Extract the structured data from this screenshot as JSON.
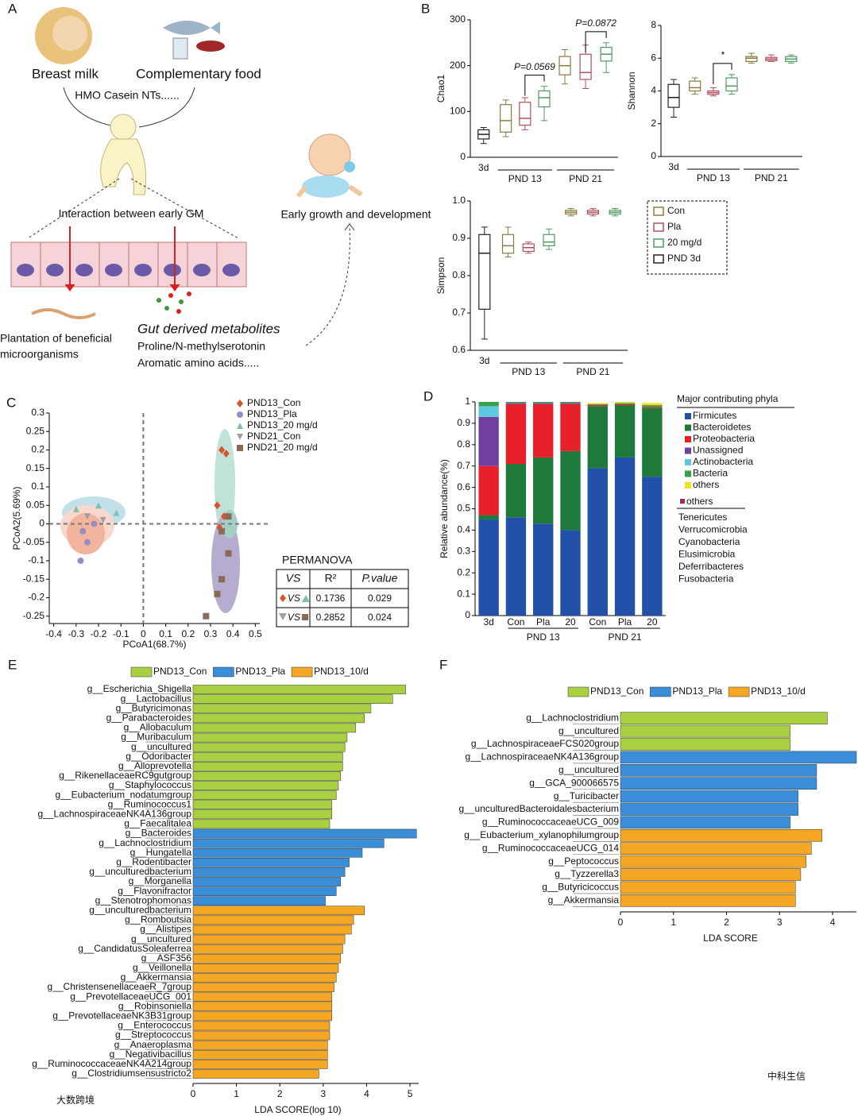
{
  "panel_labels": [
    "A",
    "B",
    "C",
    "D",
    "E",
    "F"
  ],
  "diagram": {
    "sources": [
      "Breast milk",
      "Complementary food"
    ],
    "nutrients": "HMO Casein NTs......",
    "interaction": "Interaction between early GM",
    "outcome": "Early growth and development",
    "plantation": [
      "Plantation of beneficial",
      "microorganisms"
    ],
    "metabolites": {
      "title": "Gut derived metabolites",
      "items": [
        "Proline/N-methylserotonin",
        "Aromatic amino acids....."
      ]
    }
  },
  "chart_data": [
    {
      "type": "box",
      "ylabel": "Chao1",
      "categories": [
        "3d",
        null,
        null,
        null,
        null,
        null,
        null
      ],
      "category_groups": [
        {
          "label": "PND 13",
          "members": [
            1,
            2,
            3
          ]
        },
        {
          "label": "PND 21",
          "members": [
            4,
            5,
            6
          ]
        }
      ],
      "colors": [
        "#222222",
        "#8c7b3e",
        "#b0505a",
        "#4f9a5e",
        "#8c7b3e",
        "#b0505a",
        "#4f9a5e"
      ],
      "boxes": [
        {
          "min": 30,
          "q1": 40,
          "median": 50,
          "q3": 60,
          "max": 65
        },
        {
          "min": 45,
          "q1": 55,
          "median": 80,
          "q3": 115,
          "max": 125
        },
        {
          "min": 60,
          "q1": 70,
          "median": 85,
          "q3": 120,
          "max": 130
        },
        {
          "min": 80,
          "q1": 110,
          "median": 130,
          "q3": 145,
          "max": 155
        },
        {
          "min": 160,
          "q1": 180,
          "median": 200,
          "q3": 220,
          "max": 235
        },
        {
          "min": 150,
          "q1": 170,
          "median": 185,
          "q3": 225,
          "max": 245
        },
        {
          "min": 185,
          "q1": 210,
          "median": 225,
          "q3": 240,
          "max": 250
        }
      ],
      "ylim": [
        0,
        300
      ],
      "yticks": [
        0,
        100,
        200,
        300
      ],
      "annotations": [
        {
          "text": "P=0.0569",
          "between": [
            2,
            3
          ]
        },
        {
          "text": "P=0.0872",
          "between": [
            5,
            6
          ]
        }
      ]
    },
    {
      "type": "box",
      "ylabel": "Shannon",
      "categories": [
        "3d",
        null,
        null,
        null,
        null,
        null,
        null
      ],
      "category_groups": [
        {
          "label": "PND 13",
          "members": [
            1,
            2,
            3
          ]
        },
        {
          "label": "PND 21",
          "members": [
            4,
            5,
            6
          ]
        }
      ],
      "colors": [
        "#222222",
        "#8c7b3e",
        "#b0505a",
        "#4f9a5e",
        "#8c7b3e",
        "#b0505a",
        "#4f9a5e"
      ],
      "boxes": [
        {
          "min": 2.4,
          "q1": 3,
          "median": 3.6,
          "q3": 4.4,
          "max": 4.7
        },
        {
          "min": 3.8,
          "q1": 4,
          "median": 4.2,
          "q3": 4.6,
          "max": 4.8
        },
        {
          "min": 3.7,
          "q1": 3.8,
          "median": 3.9,
          "q3": 4,
          "max": 4.2
        },
        {
          "min": 3.8,
          "q1": 4,
          "median": 4.3,
          "q3": 4.8,
          "max": 5
        },
        {
          "min": 5.7,
          "q1": 5.8,
          "median": 6,
          "q3": 6.1,
          "max": 6.3
        },
        {
          "min": 5.8,
          "q1": 5.85,
          "median": 5.95,
          "q3": 6.05,
          "max": 6.2
        },
        {
          "min": 5.7,
          "q1": 5.8,
          "median": 5.95,
          "q3": 6.1,
          "max": 6.2
        }
      ],
      "ylim": [
        0,
        8
      ],
      "yticks": [
        0,
        2,
        4,
        6,
        8
      ],
      "annotations": [
        {
          "text": "*",
          "between": [
            2,
            3
          ]
        }
      ]
    },
    {
      "type": "box",
      "ylabel": "Simpson",
      "categories": [
        "3d",
        null,
        null,
        null,
        null,
        null,
        null
      ],
      "category_groups": [
        {
          "label": "PND 13",
          "members": [
            1,
            2,
            3
          ]
        },
        {
          "label": "PND 21",
          "members": [
            4,
            5,
            6
          ]
        }
      ],
      "colors": [
        "#222222",
        "#8c7b3e",
        "#b0505a",
        "#4f9a5e",
        "#8c7b3e",
        "#b0505a",
        "#4f9a5e"
      ],
      "boxes": [
        {
          "min": 0.63,
          "q1": 0.71,
          "median": 0.86,
          "q3": 0.91,
          "max": 0.93
        },
        {
          "min": 0.85,
          "q1": 0.86,
          "median": 0.88,
          "q3": 0.91,
          "max": 0.93
        },
        {
          "min": 0.86,
          "q1": 0.865,
          "median": 0.875,
          "q3": 0.885,
          "max": 0.89
        },
        {
          "min": 0.87,
          "q1": 0.88,
          "median": 0.89,
          "q3": 0.91,
          "max": 0.925
        },
        {
          "min": 0.96,
          "q1": 0.965,
          "median": 0.97,
          "q3": 0.975,
          "max": 0.98
        },
        {
          "min": 0.96,
          "q1": 0.965,
          "median": 0.97,
          "q3": 0.975,
          "max": 0.98
        },
        {
          "min": 0.96,
          "q1": 0.965,
          "median": 0.97,
          "q3": 0.975,
          "max": 0.98
        }
      ],
      "ylim": [
        0.6,
        1
      ],
      "yticks": [
        0.6,
        0.7,
        0.8,
        0.9,
        {
          "value": 1,
          "label": "1.0"
        }
      ],
      "legend": [
        {
          "name": "Con",
          "color": "#8c7b3e"
        },
        {
          "name": "Pla",
          "color": "#b0505a"
        },
        {
          "name": "20 mg/d",
          "color": "#4f9a5e"
        },
        {
          "name": "PND 3d",
          "color": "#222222"
        }
      ]
    },
    {
      "type": "scatter",
      "xlabel": "PCoA1(68.7%)",
      "ylabel": "PCoA2(5.69%)",
      "xlim": [
        -0.42,
        0.52
      ],
      "ylim": [
        -0.27,
        0.3
      ],
      "xticks": [
        -0.4,
        -0.3,
        -0.2,
        -0.1,
        0,
        0.1,
        0.2,
        0.3,
        0.4,
        0.5
      ],
      "yticks": [
        -0.25,
        -0.2,
        -0.15,
        -0.1,
        -0.05,
        0,
        0.05,
        0.1,
        0.15,
        0.2,
        0.25,
        0.3
      ],
      "series": [
        {
          "name": "PND13_Con",
          "color": "#d9542c",
          "marker": "diamond",
          "x": [
            0.35,
            0.37,
            0.33,
            0.36,
            0.34
          ],
          "values": [
            0.2,
            0.19,
            0.05,
            0.02,
            -0.01
          ]
        },
        {
          "name": "PND13_Pla",
          "color": "#9a8cc0",
          "marker": "circle",
          "x": [
            -0.27,
            -0.25,
            -0.28,
            -0.22
          ],
          "values": [
            -0.02,
            -0.05,
            -0.1,
            0
          ]
        },
        {
          "name": "PND13_20 mg/d",
          "color": "#7fbfb0",
          "marker": "triangle",
          "x": [
            -0.3,
            -0.12,
            -0.2
          ],
          "values": [
            0.04,
            0.03,
            0.05
          ]
        },
        {
          "name": "PND21_Con",
          "color": "#a0a0a0",
          "marker": "triangle-down",
          "x": [
            -0.25,
            -0.18
          ],
          "values": [
            0.02,
            0.01
          ]
        },
        {
          "name": "PND21_20 mg/d",
          "color": "#8a6a55",
          "marker": "square",
          "x": [
            0.35,
            0.38,
            0.35,
            0.33,
            0.28,
            0.38
          ],
          "values": [
            -0.02,
            -0.08,
            -0.15,
            -0.19,
            -0.25,
            0.02
          ]
        }
      ],
      "permanova": {
        "title": "PERMANOVA",
        "header": [
          "VS",
          "R²",
          "P.value"
        ],
        "rows": [
          [
            "VS",
            "0.1736",
            "0.029"
          ],
          [
            "VS",
            "0.2852",
            "0.024"
          ]
        ]
      }
    },
    {
      "type": "stacked_bar",
      "ylabel": "Relative abundance(%)",
      "categories": [
        "3d",
        "Con",
        "Pla",
        "20",
        "Con",
        "Pla",
        "20"
      ],
      "category_groups": [
        {
          "label": "PND 13",
          "members": [
            1,
            2,
            3
          ]
        },
        {
          "label": "PND 21",
          "members": [
            4,
            5,
            6
          ]
        }
      ],
      "ylim": [
        0,
        1
      ],
      "yticks": [
        0,
        0.1,
        0.2,
        0.3,
        0.4,
        0.5,
        0.6,
        0.7,
        0.8,
        0.9,
        1
      ],
      "legend_title": "Major contributing phyla",
      "series": [
        {
          "name": "Firmicutes",
          "color": "#2350a8",
          "values": [
            0.45,
            0.46,
            0.43,
            0.4,
            0.69,
            0.74,
            0.65
          ]
        },
        {
          "name": "Bacteroidetes",
          "color": "#1e7a3a",
          "values": [
            0.02,
            0.25,
            0.31,
            0.37,
            0.29,
            0.245,
            0.32
          ]
        },
        {
          "name": "Proteobacteria",
          "color": "#e8202a",
          "values": [
            0.23,
            0.28,
            0.25,
            0.22,
            0.005,
            0.005,
            0.005
          ]
        },
        {
          "name": "Unassigned",
          "color": "#7040a0",
          "values": [
            0.23,
            0.005,
            0.005,
            0.005,
            0,
            0,
            0
          ]
        },
        {
          "name": "Actinobacteria",
          "color": "#5fc8e0",
          "values": [
            0.05,
            0,
            0,
            0,
            0,
            0,
            0
          ]
        },
        {
          "name": "Bacteria",
          "color": "#3aa048",
          "values": [
            0.02,
            0.005,
            0.005,
            0.005,
            0.005,
            0.005,
            0.01
          ]
        },
        {
          "name": "others",
          "color": "#f5e020",
          "values": [
            0,
            0,
            0,
            0,
            0.005,
            0.005,
            0.01
          ]
        }
      ],
      "others_title": "others",
      "others_color": "#a0304a",
      "others_list": [
        "Tenericutes",
        "Verrucomicrobia",
        "Cyanobacteria",
        "Elusimicrobia",
        "Deferribacteres",
        "Fusobacteria"
      ]
    },
    {
      "type": "hbar",
      "xlabel": "LDA SCORE(log 10)",
      "xlim": [
        0,
        5.2
      ],
      "xticks": [
        0,
        1,
        2,
        3,
        4,
        5
      ],
      "series": [
        {
          "name": "PND13_Con",
          "color": "#a8d040",
          "categories": [
            "g__Escherichia_Shigella",
            "g__Lactobacillus",
            "g__Butyricimonas",
            "g__Parabacteroides",
            "g__Allobaculum",
            "g__Muribaculum",
            "g__uncultured",
            "g__Odoribacter",
            "g__Alloprevotella",
            "g__RikenellaceaeRC9gutgroup",
            "g__Staphylococcus",
            "g__Eubacterium_nodatumgroup",
            "g__Ruminococcus1",
            "g__LachnospiraceaeNK4A136group",
            "g__Faecalitalea"
          ],
          "values": [
            4.9,
            4.6,
            4.1,
            3.95,
            3.75,
            3.55,
            3.5,
            3.45,
            3.45,
            3.4,
            3.35,
            3.3,
            3.2,
            3.2,
            3.15
          ]
        },
        {
          "name": "PND13_Pla",
          "color": "#3a8ed8",
          "categories": [
            "g__Bacteroides",
            "g__Lachnoclostridium",
            "g__Hungatella",
            "g__Rodentibacter",
            "g__unculturedbacterium",
            "g__Morganella",
            "g__Flavonifractor",
            "g__Stenotrophomonas"
          ],
          "values": [
            5.15,
            4.4,
            3.9,
            3.6,
            3.5,
            3.4,
            3.3,
            3.05
          ]
        },
        {
          "name": "PND13_10/d",
          "color": "#f5a623",
          "categories": [
            "g__unculturedbacterium",
            "g__Romboutsia",
            "g__Alistipes",
            "g__uncultured",
            "g__CandidatusSoleaferrea",
            "g__ASF356",
            "g__Veillonella",
            "g__Akkermansia",
            "g__ChristensenellaceaeR_7group",
            "g__PrevotellaceaeUCG_001",
            "g__Robinsoniella",
            "g__PrevotellaceaeNK3B31group",
            "g__Enterococcus",
            "g__Streptococcus",
            "g__Anaeroplasma",
            "g__Negativibacillus",
            "g__RuminococcaceaeNK4A214group",
            "g__Clostridiumsensustricto2"
          ],
          "values": [
            3.95,
            3.7,
            3.65,
            3.5,
            3.45,
            3.4,
            3.35,
            3.3,
            3.25,
            3.2,
            3.2,
            3.2,
            3.15,
            3.15,
            3.1,
            3.1,
            3.1,
            2.9
          ]
        }
      ]
    },
    {
      "type": "hbar",
      "xlabel": "LDA SCORE",
      "xlim": [
        0,
        4.45
      ],
      "xticks": [
        0,
        1,
        2,
        3,
        4
      ],
      "series": [
        {
          "name": "PND13_Con",
          "color": "#a8d040",
          "categories": [
            "g__Lachnoclostridium",
            "g__uncultured",
            "g__LachnospiraceaeFCS020group"
          ],
          "values": [
            3.9,
            3.2,
            3.2
          ]
        },
        {
          "name": "PND13_Pla",
          "color": "#3a8ed8",
          "categories": [
            "g__LachnospiraceaeNK4A136group",
            "g__uncultured",
            "g__GCA_900066575",
            "g__Turicibacter",
            "g__unculturedBacteroidalesbacterium",
            "g__RuminococcaceaeUCG_009"
          ],
          "values": [
            4.45,
            3.7,
            3.7,
            3.35,
            3.35,
            3.2
          ]
        },
        {
          "name": "PND13_10/d",
          "color": "#f5a623",
          "categories": [
            "g__Eubacterium_xylanophilumgroup",
            "g__RuminococcaceaeUCG_014",
            "g__Peptococcus",
            "g__Tyzzerella3",
            "g__Butyricicoccus",
            "g__Akkermansia"
          ],
          "values": [
            3.8,
            3.6,
            3.5,
            3.4,
            3.3,
            3.3
          ]
        }
      ]
    }
  ],
  "watermarks": [
    "中科生信",
    "大数跨境"
  ]
}
